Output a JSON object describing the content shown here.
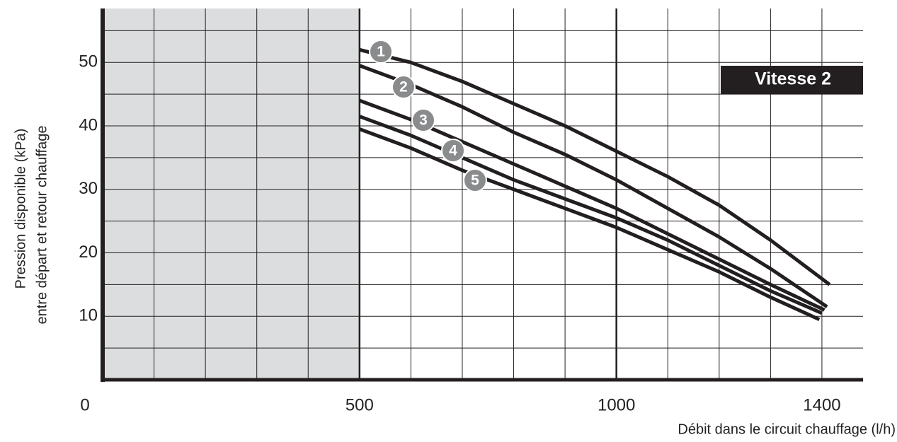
{
  "chart_data": {
    "type": "line",
    "xlabel": "Débit dans le circuit chauffage (l/h)",
    "ylabel": [
      "Pression disponible (kPa)",
      "entre départ et retour chauffage"
    ],
    "annotation": "Vitesse 2",
    "xlim": [
      0,
      1480
    ],
    "ylim": [
      0,
      58.5
    ],
    "xticks": [
      0,
      500,
      1000,
      1400
    ],
    "yticks": [
      10,
      20,
      30,
      40,
      50
    ],
    "x_grid": [
      100,
      200,
      300,
      400,
      500,
      600,
      700,
      800,
      900,
      1000,
      1100,
      1200,
      1300,
      1400
    ],
    "y_grid": [
      5,
      10,
      15,
      20,
      25,
      30,
      35,
      40,
      45,
      50,
      55
    ],
    "grid": true,
    "shaded_xrange": [
      0,
      500
    ],
    "series": [
      {
        "name": "1",
        "color": "#231f20",
        "x": [
          500,
          600,
          700,
          800,
          900,
          1000,
          1100,
          1200,
          1300,
          1415
        ],
        "values": [
          52,
          50,
          47,
          43.5,
          40,
          36,
          32,
          27.5,
          22,
          15
        ]
      },
      {
        "name": "2",
        "color": "#231f20",
        "x": [
          500,
          600,
          700,
          800,
          900,
          1000,
          1100,
          1200,
          1300,
          1410
        ],
        "values": [
          49.5,
          46.5,
          43,
          39,
          35.5,
          31.5,
          27,
          22.5,
          17.5,
          11.5
        ]
      },
      {
        "name": "3",
        "color": "#231f20",
        "x": [
          500,
          600,
          700,
          800,
          900,
          1000,
          1100,
          1200,
          1300,
          1405
        ],
        "values": [
          44,
          41,
          37.5,
          34,
          30.5,
          27,
          23,
          19,
          15,
          11
        ]
      },
      {
        "name": "4",
        "color": "#231f20",
        "x": [
          500,
          600,
          700,
          800,
          900,
          1000,
          1100,
          1200,
          1300,
          1400
        ],
        "values": [
          41.5,
          38.5,
          35,
          31.5,
          28.5,
          25.5,
          22,
          18,
          14,
          10.5
        ]
      },
      {
        "name": "5",
        "color": "#231f20",
        "x": [
          500,
          600,
          700,
          800,
          900,
          1000,
          1100,
          1200,
          1300,
          1395
        ],
        "values": [
          39.5,
          36.5,
          33,
          30,
          27,
          24,
          20.5,
          17,
          13,
          9.5
        ]
      }
    ]
  }
}
